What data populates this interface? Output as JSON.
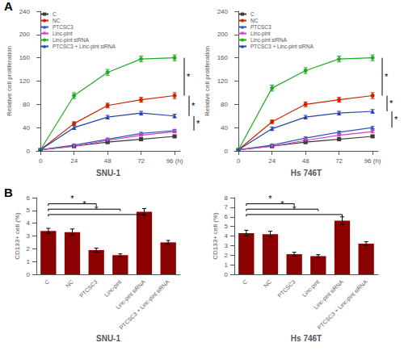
{
  "chart_data": [
    {
      "type": "line",
      "xlabel": "SNU-1",
      "ylabel": "Relative cell proliferation",
      "x": [
        0,
        24,
        48,
        72,
        96
      ],
      "xlim": [
        -3,
        100
      ],
      "xticks": [
        0,
        24,
        48,
        72,
        {
          "value": 96,
          "label": "96 (h)"
        }
      ],
      "ylim": [
        0,
        240
      ],
      "yticks": [
        0,
        40,
        80,
        120,
        160,
        200,
        240
      ],
      "grid": false,
      "legend": "upper left",
      "series": [
        {
          "name": "C",
          "color": "#3a3a3a",
          "marker": "square",
          "values": [
            2,
            8,
            15,
            20,
            25
          ],
          "errors": [
            0.5,
            1.5,
            2,
            2,
            2
          ]
        },
        {
          "name": "NC",
          "color": "#cc2200",
          "marker": "circle",
          "values": [
            2,
            47,
            78,
            88,
            95
          ],
          "errors": [
            0.5,
            3,
            4,
            4,
            5
          ]
        },
        {
          "name": "PTCSC3",
          "color": "#3355bb",
          "marker": "triangle-up",
          "values": [
            2,
            10,
            20,
            30,
            35
          ],
          "errors": [
            0.5,
            1.5,
            2,
            2,
            2
          ]
        },
        {
          "name": "Linc-pint",
          "color": "#cc44bb",
          "marker": "triangle-down",
          "values": [
            2,
            8,
            18,
            27,
            33
          ],
          "errors": [
            0.5,
            1.5,
            2,
            2,
            2
          ]
        },
        {
          "name": "Linc-pint siRNA",
          "color": "#22aa22",
          "marker": "circle",
          "values": [
            2,
            95,
            135,
            158,
            160
          ],
          "errors": [
            0.5,
            5,
            5,
            5,
            5
          ]
        },
        {
          "name": "PTCSC3 + Linc-pint siRNA",
          "color": "#2244aa",
          "marker": "triangle-up",
          "values": [
            2,
            40,
            58,
            65,
            60
          ],
          "errors": [
            0.5,
            3,
            3,
            3,
            3
          ]
        }
      ],
      "annotations": [
        {
          "text": "A"
        },
        {
          "text": "*",
          "between": [
            "NC",
            "Linc-pint siRNA"
          ]
        },
        {
          "text": "*",
          "between": [
            "PTCSC3 + Linc-pint siRNA",
            "NC"
          ]
        },
        {
          "text": "*",
          "between": [
            "PTCSC3",
            "PTCSC3 + Linc-pint siRNA"
          ]
        }
      ]
    },
    {
      "type": "line",
      "xlabel": "Hs 746T",
      "ylabel": "Relative cell proliferation",
      "x": [
        0,
        24,
        48,
        72,
        96
      ],
      "xlim": [
        -3,
        100
      ],
      "xticks": [
        0,
        24,
        48,
        72,
        {
          "value": 96,
          "label": "96 (h)"
        }
      ],
      "ylim": [
        0,
        240
      ],
      "yticks": [
        0,
        40,
        80,
        120,
        160,
        200,
        240
      ],
      "grid": false,
      "legend": "upper left",
      "series": [
        {
          "name": "C",
          "color": "#3a3a3a",
          "marker": "square",
          "values": [
            2,
            8,
            15,
            20,
            25
          ],
          "errors": [
            0.5,
            1.5,
            2,
            2,
            2
          ]
        },
        {
          "name": "NC",
          "color": "#cc2200",
          "marker": "circle",
          "values": [
            2,
            50,
            80,
            88,
            95
          ],
          "errors": [
            0.5,
            3,
            4,
            4,
            5
          ]
        },
        {
          "name": "PTCSC3",
          "color": "#3355bb",
          "marker": "triangle-up",
          "values": [
            2,
            10,
            22,
            32,
            40
          ],
          "errors": [
            0.5,
            1.5,
            2,
            2,
            2
          ]
        },
        {
          "name": "Linc-pint",
          "color": "#cc44bb",
          "marker": "triangle-down",
          "values": [
            2,
            8,
            18,
            27,
            33
          ],
          "errors": [
            0.5,
            1.5,
            2,
            2,
            2
          ]
        },
        {
          "name": "Linc-pint siRNA",
          "color": "#22aa22",
          "marker": "circle",
          "values": [
            2,
            108,
            138,
            158,
            160
          ],
          "errors": [
            0.5,
            5,
            5,
            5,
            5
          ]
        },
        {
          "name": "PTCSC3 + Linc-pint siRNA",
          "color": "#2244aa",
          "marker": "triangle-up",
          "values": [
            2,
            38,
            58,
            65,
            68
          ],
          "errors": [
            0.5,
            3,
            3,
            3,
            3
          ]
        }
      ],
      "annotations": [
        {
          "text": "*",
          "between": [
            "NC",
            "Linc-pint siRNA"
          ]
        },
        {
          "text": "*",
          "between": [
            "PTCSC3 + Linc-pint siRNA",
            "NC"
          ]
        },
        {
          "text": "*",
          "between": [
            "PTCSC3",
            "PTCSC3 + Linc-pint siRNA"
          ]
        }
      ]
    },
    {
      "type": "bar",
      "xlabel": "SNU-1",
      "ylabel": "CD133+ cell (%)",
      "categories": [
        "C",
        "NC",
        "PTCSC3",
        "Linc-pint",
        "Linc-pint siRNA",
        "PTCSC3 + Linc-pint siRNA"
      ],
      "values": [
        3.4,
        3.3,
        1.9,
        1.5,
        4.9,
        2.5
      ],
      "errors": [
        0.2,
        0.25,
        0.15,
        0.1,
        0.25,
        0.15
      ],
      "color": "#8B0000",
      "ylim": [
        0,
        6
      ],
      "yticks": [
        0,
        1,
        2,
        3,
        4,
        5,
        6
      ],
      "grid": false,
      "annotations": [
        {
          "text": "B"
        },
        {
          "text": "*",
          "between": [
            "C",
            "PTCSC3"
          ]
        },
        {
          "text": "*",
          "between": [
            "C",
            "Linc-pint"
          ]
        },
        {
          "text": "*",
          "between": [
            "C",
            "Linc-pint siRNA"
          ]
        }
      ]
    },
    {
      "type": "bar",
      "xlabel": "Hs 746T",
      "ylabel": "CD133+ cell (%)",
      "categories": [
        "C",
        "NC",
        "PTCSC3",
        "Linc-pint",
        "Linc-pint siRNA",
        "PTCSC3 + Linc-pint siRNA"
      ],
      "values": [
        4.3,
        4.2,
        2.1,
        1.9,
        5.6,
        3.2
      ],
      "errors": [
        0.3,
        0.3,
        0.2,
        0.15,
        0.4,
        0.2
      ],
      "color": "#8B0000",
      "ylim": [
        0,
        8
      ],
      "yticks": [
        0,
        1,
        2,
        3,
        4,
        5,
        6,
        7,
        8
      ],
      "grid": false,
      "annotations": [
        {
          "text": "*",
          "between": [
            "C",
            "PTCSC3"
          ]
        },
        {
          "text": "*",
          "between": [
            "C",
            "Linc-pint"
          ]
        },
        {
          "text": "*",
          "between": [
            "C",
            "Linc-pint siRNA"
          ]
        }
      ]
    }
  ]
}
